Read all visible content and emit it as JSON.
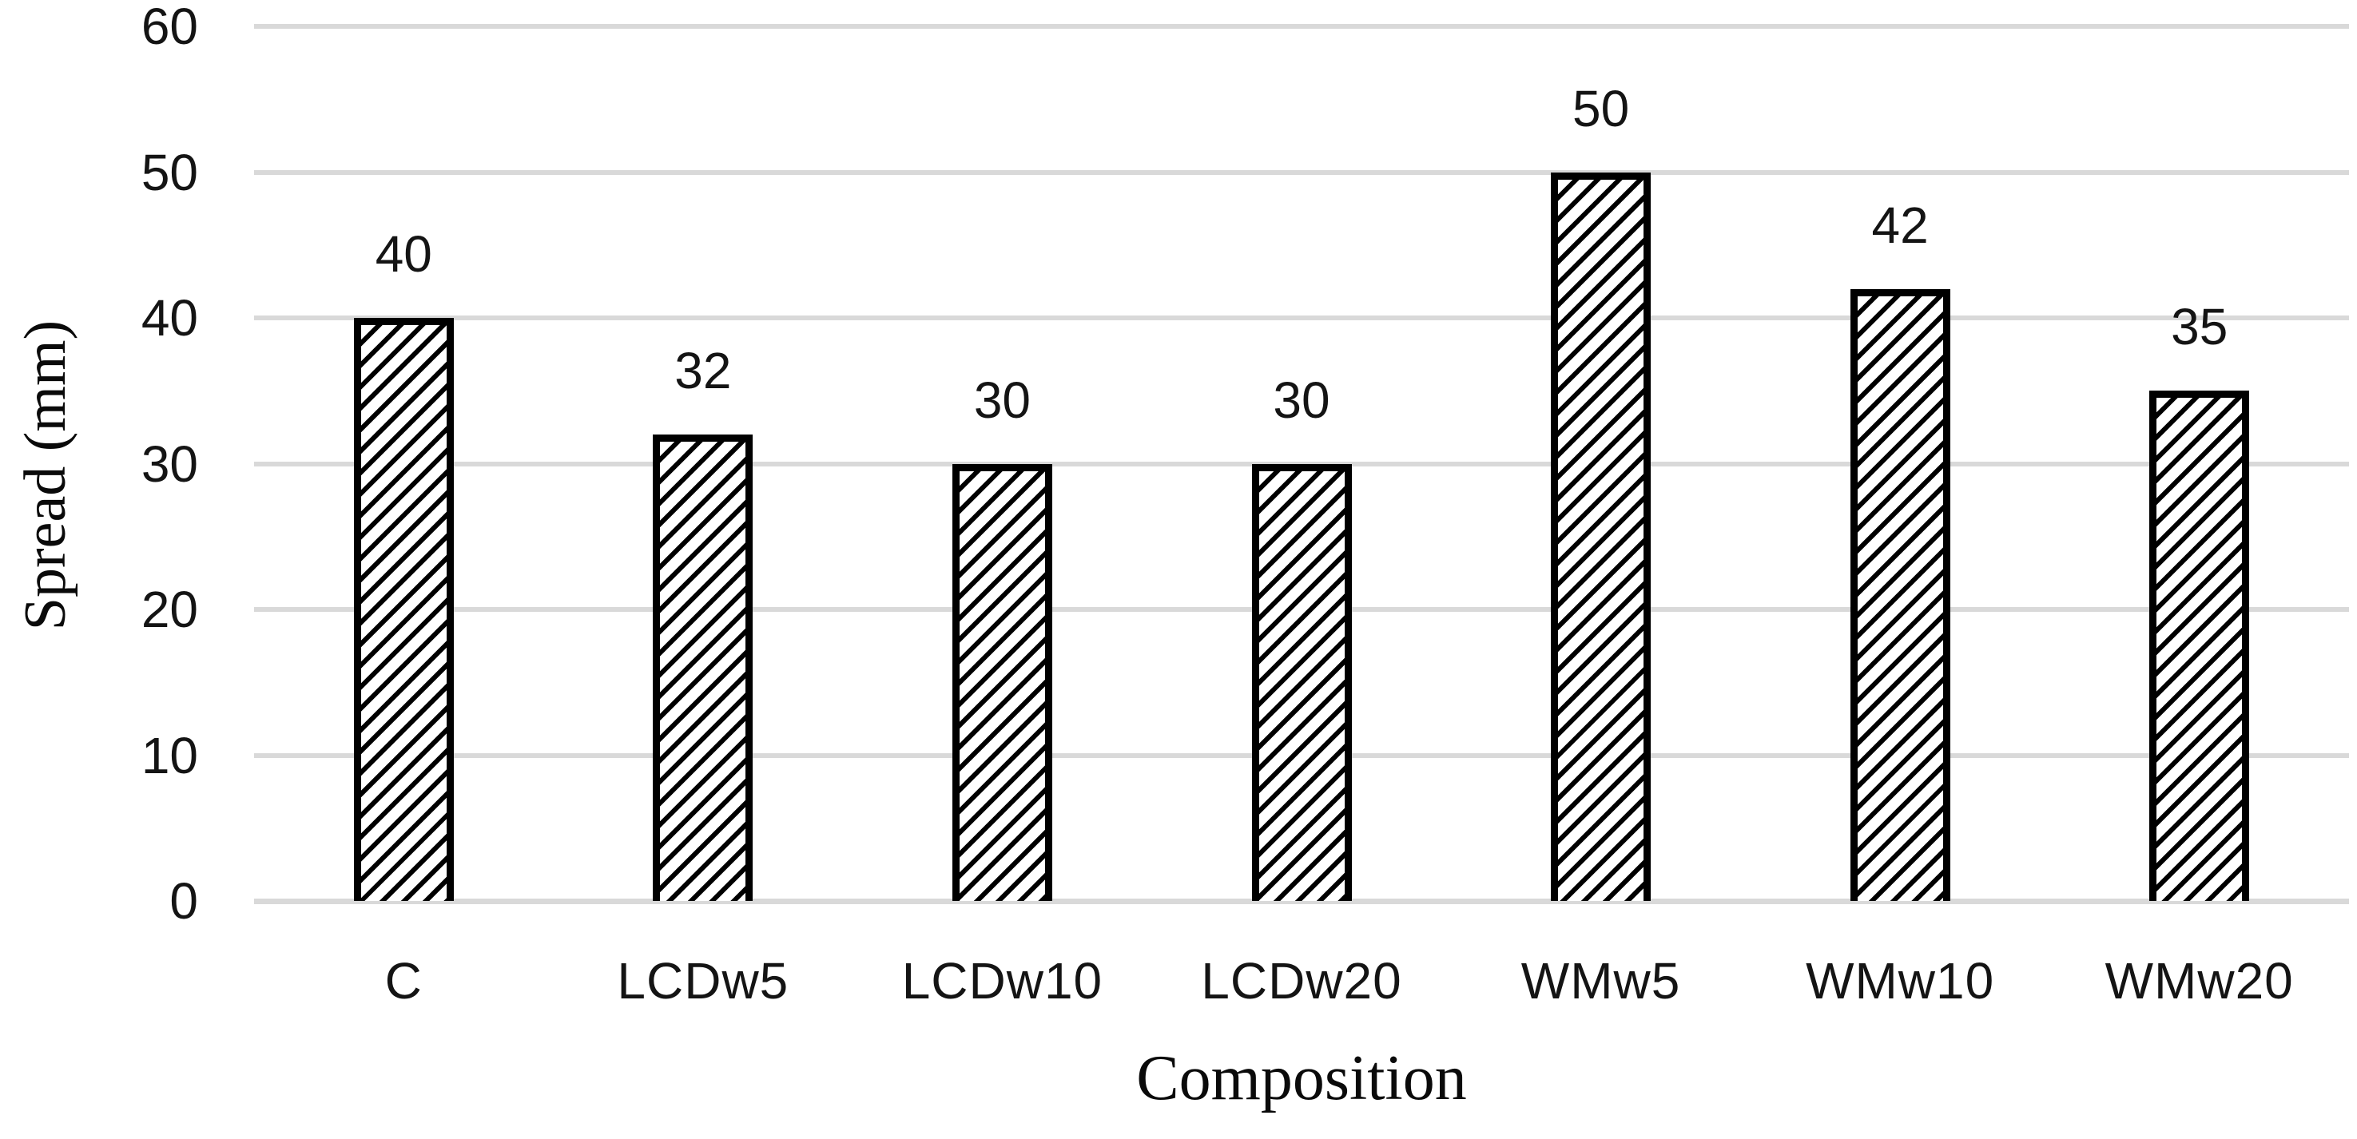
{
  "chart_data": {
    "type": "bar",
    "title": "",
    "xlabel": "Composition",
    "ylabel": "Spread (mm)",
    "categories": [
      "C",
      "LCDw5",
      "LCDw10",
      "LCDw20",
      "WMw5",
      "WMw10",
      "WMw20"
    ],
    "values": [
      40,
      32,
      30,
      30,
      50,
      42,
      35
    ],
    "data_labels": [
      "40",
      "32",
      "30",
      "30",
      "50",
      "42",
      "35"
    ],
    "ylim": [
      0,
      60
    ],
    "yticks": [
      0,
      10,
      20,
      30,
      40,
      50,
      60
    ],
    "grid": "horizontal",
    "legend": "none",
    "bar_style": {
      "fill": "#ffffff",
      "pattern": "diagonal-hatch-upward",
      "outline_color": "#000000",
      "hatch_color": "#000000"
    },
    "colors": {
      "gridline": "#d9d9d9",
      "text": "#141414",
      "background": "#ffffff"
    }
  }
}
